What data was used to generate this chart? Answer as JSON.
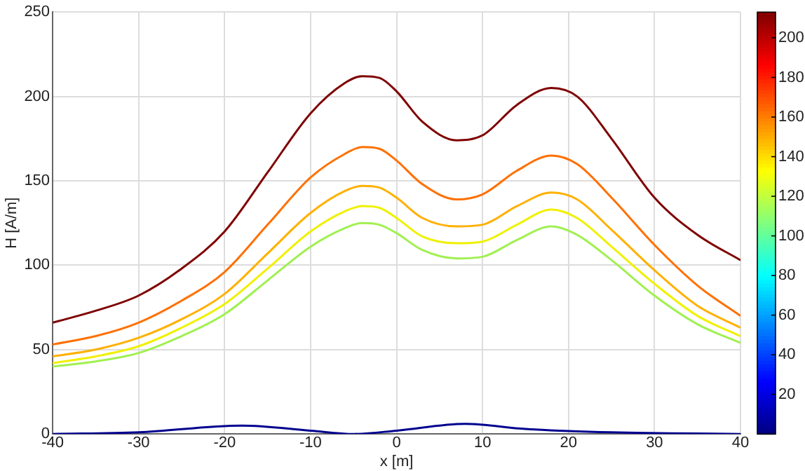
{
  "chart_data": {
    "type": "line",
    "xlabel": "x [m]",
    "ylabel": "H [A/m]",
    "xlim": [
      -40,
      40
    ],
    "ylim": [
      0,
      250
    ],
    "xticks": [
      -40,
      -30,
      -20,
      -10,
      0,
      10,
      20,
      30,
      40
    ],
    "yticks": [
      0,
      50,
      100,
      150,
      200,
      250
    ],
    "grid": true,
    "legend": false,
    "marker": "none",
    "line_style": "solid",
    "clim": [
      0,
      213
    ],
    "cticks": [
      20,
      40,
      60,
      80,
      100,
      120,
      140,
      160,
      180,
      200
    ],
    "series": [
      {
        "color": "#7f0000",
        "x": [
          -40,
          -35,
          -30,
          -25,
          -20,
          -15,
          -10,
          -6,
          -4,
          -2,
          0,
          3,
          7,
          10,
          14,
          18,
          21,
          25,
          30,
          35,
          40
        ],
        "values": [
          66,
          73,
          82,
          98,
          120,
          155,
          190,
          208,
          212,
          211,
          203,
          185,
          174,
          177,
          195,
          205,
          200,
          175,
          140,
          118,
          103
        ]
      },
      {
        "color": "#ff7000",
        "x": [
          -40,
          -35,
          -30,
          -25,
          -20,
          -15,
          -10,
          -6,
          -4,
          -2,
          0,
          3,
          7,
          10,
          14,
          18,
          21,
          25,
          30,
          35,
          40
        ],
        "values": [
          53,
          58,
          66,
          79,
          96,
          124,
          152,
          166,
          170,
          169,
          162,
          148,
          139,
          142,
          156,
          165,
          160,
          140,
          112,
          88,
          70
        ]
      },
      {
        "color": "#ffb000",
        "x": [
          -40,
          -35,
          -30,
          -25,
          -20,
          -15,
          -10,
          -6,
          -4,
          -2,
          0,
          3,
          7,
          10,
          14,
          18,
          21,
          25,
          30,
          35,
          40
        ],
        "values": [
          46,
          50,
          57,
          68,
          83,
          107,
          131,
          144,
          147,
          146,
          140,
          128,
          123,
          124,
          135,
          143,
          139,
          121,
          97,
          76,
          63
        ]
      },
      {
        "color": "#f0f000",
        "x": [
          -40,
          -35,
          -30,
          -25,
          -20,
          -15,
          -10,
          -6,
          -4,
          -2,
          0,
          3,
          7,
          10,
          14,
          18,
          21,
          25,
          30,
          35,
          40
        ],
        "values": [
          42,
          46,
          52,
          63,
          77,
          98,
          120,
          132,
          135,
          134,
          128,
          117,
          113,
          114,
          124,
          133,
          128,
          111,
          89,
          70,
          58
        ]
      },
      {
        "color": "#a0f050",
        "x": [
          -40,
          -35,
          -30,
          -25,
          -20,
          -15,
          -10,
          -6,
          -4,
          -2,
          0,
          3,
          7,
          10,
          14,
          18,
          21,
          25,
          30,
          35,
          40
        ],
        "values": [
          40,
          43,
          48,
          58,
          71,
          91,
          111,
          122,
          125,
          124,
          119,
          109,
          104,
          105,
          115,
          123,
          118,
          103,
          82,
          65,
          54
        ]
      },
      {
        "color": "#00008f",
        "x": [
          -40,
          -30,
          -18,
          -10,
          -5,
          0,
          8,
          15,
          25,
          40
        ],
        "values": [
          0,
          1,
          5,
          2,
          0,
          2,
          6,
          3,
          1,
          0
        ]
      }
    ]
  }
}
